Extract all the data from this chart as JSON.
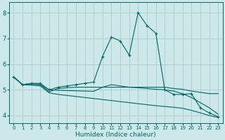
{
  "xlabel": "Humidex (Indice chaleur)",
  "background_color": "#cce8e8",
  "grid_color": "#aacccc",
  "line_color": "#006868",
  "xlim": [
    -0.5,
    23.5
  ],
  "ylim": [
    3.7,
    8.4
  ],
  "xticks": [
    0,
    1,
    2,
    3,
    4,
    5,
    6,
    7,
    8,
    9,
    10,
    11,
    12,
    13,
    14,
    15,
    16,
    17,
    18,
    19,
    20,
    21,
    22,
    23
  ],
  "yticks": [
    4,
    5,
    6,
    7,
    8
  ],
  "series": [
    {
      "x": [
        0,
        1,
        2,
        3,
        4,
        5,
        6,
        7,
        8,
        9,
        10,
        11,
        12,
        13,
        14,
        15,
        16,
        17,
        18,
        19,
        20,
        21,
        22,
        23
      ],
      "y": [
        5.5,
        5.2,
        5.25,
        5.25,
        5.0,
        5.1,
        5.15,
        5.2,
        5.25,
        5.3,
        6.3,
        7.05,
        6.9,
        6.35,
        8.0,
        7.5,
        7.2,
        5.0,
        4.82,
        4.82,
        4.85,
        4.3,
        4.1,
        3.95
      ],
      "marker": "+"
    },
    {
      "x": [
        0,
        1,
        2,
        3,
        4,
        5,
        6,
        7,
        8,
        9,
        10,
        11,
        12,
        13,
        14,
        15,
        16,
        17,
        18,
        19,
        20,
        21,
        22,
        23
      ],
      "y": [
        5.5,
        5.2,
        5.25,
        5.2,
        4.92,
        5.05,
        5.08,
        5.1,
        5.1,
        5.1,
        5.1,
        5.1,
        5.1,
        5.1,
        5.1,
        5.1,
        5.1,
        5.1,
        5.05,
        5.02,
        4.95,
        4.9,
        4.85,
        4.85
      ],
      "marker": null
    },
    {
      "x": [
        0,
        1,
        2,
        3,
        4,
        5,
        6,
        7,
        8,
        9,
        10,
        11,
        12,
        13,
        14,
        15,
        16,
        17,
        18,
        19,
        20,
        21,
        22,
        23
      ],
      "y": [
        5.5,
        5.2,
        5.2,
        5.2,
        5.0,
        4.98,
        4.97,
        4.96,
        4.95,
        4.94,
        5.1,
        5.2,
        5.15,
        5.1,
        5.08,
        5.05,
        5.02,
        5.0,
        4.95,
        4.85,
        4.7,
        4.5,
        4.3,
        4.05
      ],
      "marker": null
    },
    {
      "x": [
        0,
        1,
        2,
        3,
        4,
        5,
        6,
        7,
        8,
        9,
        10,
        11,
        12,
        13,
        14,
        15,
        16,
        17,
        18,
        19,
        20,
        21,
        22,
        23
      ],
      "y": [
        5.5,
        5.2,
        5.18,
        5.15,
        4.88,
        4.82,
        4.78,
        4.74,
        4.7,
        4.66,
        4.62,
        4.58,
        4.54,
        4.5,
        4.46,
        4.42,
        4.38,
        4.35,
        4.32,
        4.28,
        4.2,
        4.1,
        4.0,
        3.92
      ],
      "marker": null
    }
  ]
}
